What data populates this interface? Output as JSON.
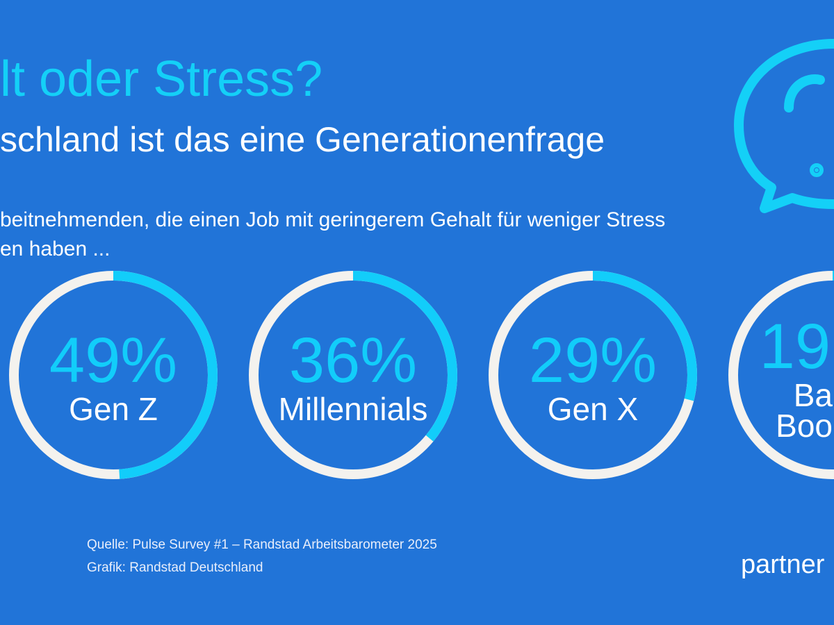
{
  "chart_data": {
    "type": "donut",
    "title": "lt oder Stress?",
    "subtitle": "schland ist das eine Generationenfrage",
    "description": [
      "beitnehmenden, die einen Job mit geringerem Gehalt für weniger Stress",
      "en haben ..."
    ],
    "categories": [
      [
        "Gen Z"
      ],
      [
        "Millennials"
      ],
      [
        "Gen X"
      ],
      [
        "Ba",
        "Boo"
      ]
    ],
    "values": [
      49,
      36,
      29,
      19
    ],
    "value_labels": [
      "49%",
      "36%",
      "29%",
      "19"
    ],
    "color": "#12cdfa",
    "track_color": "#f4f2ee",
    "source": [
      "Quelle: Pulse Survey #1 – Randstad Arbeitsbarometer 2025",
      "Grafik: Randstad Deutschland"
    ],
    "brand": "partner"
  }
}
